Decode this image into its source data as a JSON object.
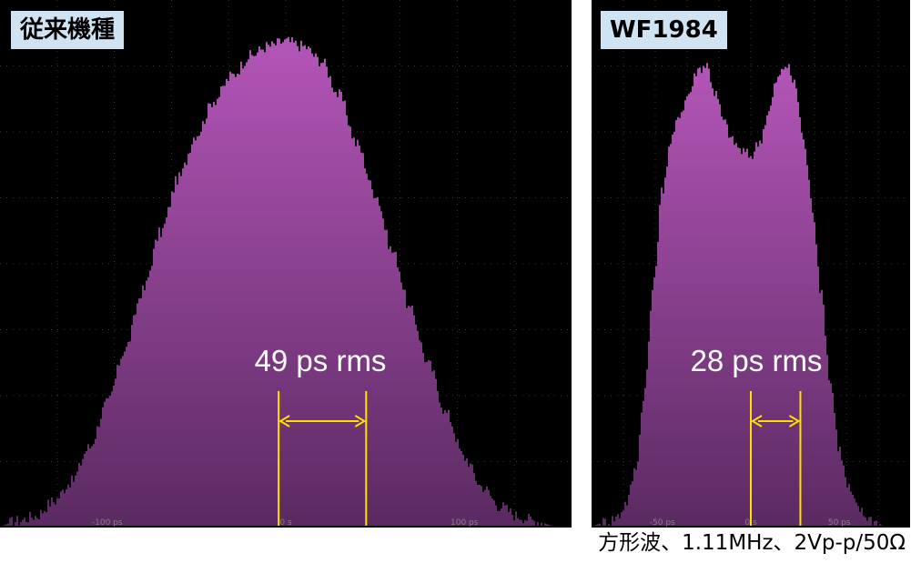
{
  "caption": "方形波、1.11MHz、2Vp-p/50Ω",
  "colors": {
    "histogram_top": "#b455b8",
    "histogram_bottom": "#5b2a62",
    "marker": "#ffe000",
    "background": "#000000",
    "label_box": "#cfe3f3"
  },
  "chart_data": [
    {
      "type": "area",
      "label": "従来機種",
      "annotation": "49 ps rms",
      "x_unit": "ps",
      "xlim": [
        -160,
        160
      ],
      "ylim": [
        0,
        1
      ],
      "grid": true,
      "tick_labels": [
        {
          "x": -100,
          "text": "-100 ps"
        },
        {
          "x": 0,
          "text": "0 s"
        },
        {
          "x": 100,
          "text": "100 ps"
        }
      ],
      "marker_lines_x": [
        -4,
        45
      ],
      "x": [
        -160,
        -150,
        -140,
        -130,
        -120,
        -110,
        -100,
        -90,
        -80,
        -70,
        -60,
        -50,
        -40,
        -30,
        -20,
        -10,
        0,
        10,
        20,
        30,
        40,
        50,
        60,
        70,
        80,
        90,
        100,
        110,
        120,
        130,
        140,
        150,
        160
      ],
      "y": [
        0.0,
        0.01,
        0.02,
        0.05,
        0.09,
        0.16,
        0.25,
        0.36,
        0.48,
        0.6,
        0.71,
        0.8,
        0.87,
        0.92,
        0.96,
        0.98,
        0.99,
        0.98,
        0.95,
        0.88,
        0.78,
        0.68,
        0.56,
        0.44,
        0.33,
        0.23,
        0.14,
        0.08,
        0.04,
        0.02,
        0.01,
        0.0,
        0.0
      ]
    },
    {
      "type": "area",
      "label": "WF1984",
      "annotation": "28 ps rms",
      "x_unit": "ps",
      "xlim": [
        -90,
        90
      ],
      "ylim": [
        0,
        1
      ],
      "grid": true,
      "tick_labels": [
        {
          "x": -50,
          "text": "-50 ps"
        },
        {
          "x": 0,
          "text": "0 s"
        },
        {
          "x": 50,
          "text": "50 ps"
        }
      ],
      "marker_lines_x": [
        0,
        28
      ],
      "x": [
        -90,
        -80,
        -75,
        -70,
        -65,
        -60,
        -55,
        -50,
        -45,
        -40,
        -35,
        -30,
        -25,
        -20,
        -15,
        -10,
        -5,
        0,
        5,
        10,
        15,
        20,
        25,
        30,
        35,
        40,
        45,
        50,
        55,
        60,
        65,
        70,
        75,
        80,
        90
      ],
      "y": [
        0.0,
        0.01,
        0.02,
        0.05,
        0.12,
        0.28,
        0.5,
        0.7,
        0.8,
        0.86,
        0.9,
        0.95,
        0.96,
        0.9,
        0.84,
        0.8,
        0.78,
        0.77,
        0.8,
        0.86,
        0.93,
        0.96,
        0.92,
        0.8,
        0.66,
        0.48,
        0.3,
        0.16,
        0.08,
        0.04,
        0.02,
        0.01,
        0.0,
        0.0,
        0.0
      ]
    }
  ]
}
